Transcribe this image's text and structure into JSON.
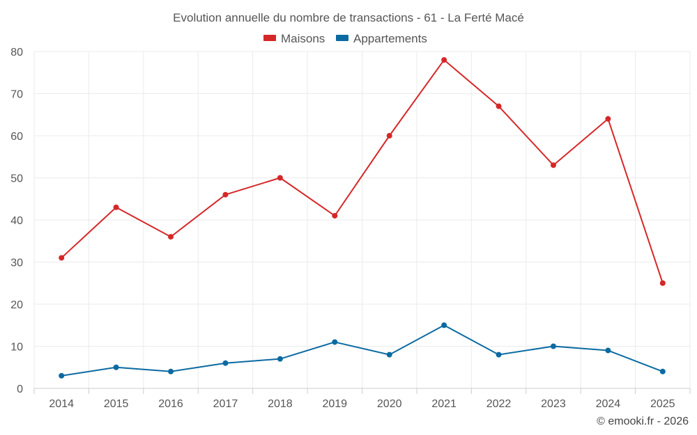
{
  "chart_data": {
    "type": "line",
    "title": "Evolution annuelle du nombre de transactions - 61 - La Ferté Macé",
    "xlabel": "",
    "ylabel": "",
    "categories": [
      "2014",
      "2015",
      "2016",
      "2017",
      "2018",
      "2019",
      "2020",
      "2021",
      "2022",
      "2023",
      "2024",
      "2025"
    ],
    "ylim": [
      0,
      80
    ],
    "yticks": [
      0,
      10,
      20,
      30,
      40,
      50,
      60,
      70,
      80
    ],
    "grid": true,
    "legend_position": "top-center",
    "series": [
      {
        "name": "Maisons",
        "color": "#d62728",
        "values": [
          31,
          43,
          36,
          46,
          50,
          41,
          60,
          78,
          67,
          53,
          64,
          25
        ]
      },
      {
        "name": "Appartements",
        "color": "#0a6aa1",
        "values": [
          3,
          5,
          4,
          6,
          7,
          11,
          8,
          15,
          8,
          10,
          9,
          4
        ]
      }
    ]
  },
  "credit": "© emooki.fr - 2026"
}
